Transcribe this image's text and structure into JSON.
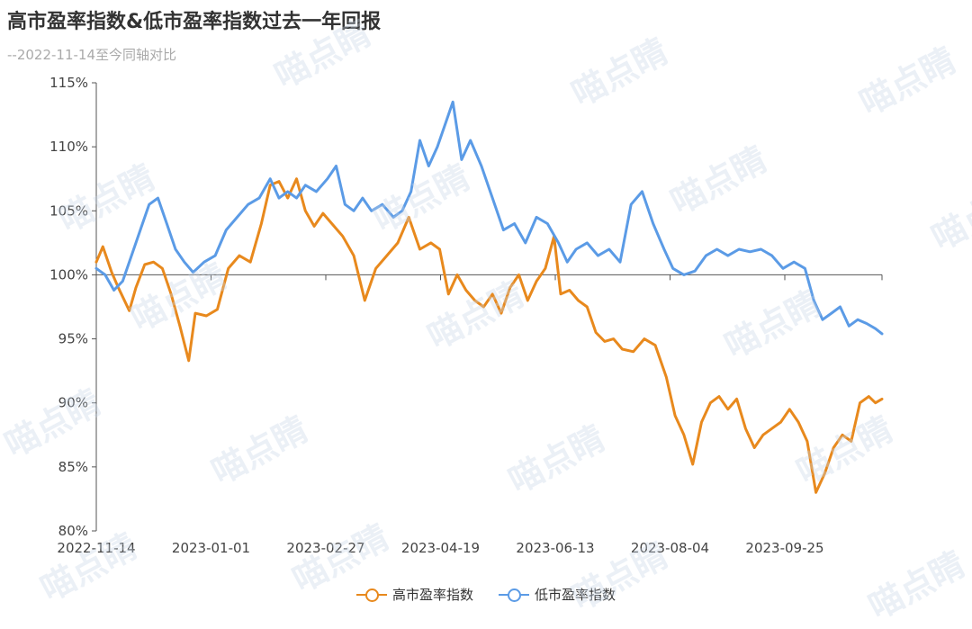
{
  "chart_data": {
    "type": "line",
    "title": "高市盈率指数&低市盈率指数过去一年回报",
    "subtitle": "--2022-11-14至今同轴对比",
    "ylim": [
      80,
      115
    ],
    "y_ticks": [
      "80%",
      "85%",
      "90%",
      "95%",
      "100%",
      "105%",
      "110%",
      "115%"
    ],
    "x_ticks": [
      "2022-11-14",
      "2023-01-01",
      "2023-02-27",
      "2023-04-19",
      "2023-06-13",
      "2023-08-04",
      "2023-09-25"
    ],
    "legend_position": "bottom",
    "grid": false,
    "series": [
      {
        "name": "高市盈率指数",
        "color": "#e8891d",
        "points": [
          [
            "2022-11-14",
            101.0
          ],
          [
            "2022-11-17",
            102.2
          ],
          [
            "2022-11-21",
            100.2
          ],
          [
            "2022-11-24",
            99.0
          ],
          [
            "2022-11-29",
            97.2
          ],
          [
            "2022-12-02",
            99.0
          ],
          [
            "2022-12-06",
            100.8
          ],
          [
            "2022-12-10",
            101.0
          ],
          [
            "2022-12-14",
            100.5
          ],
          [
            "2022-12-18",
            98.5
          ],
          [
            "2022-12-22",
            96.0
          ],
          [
            "2022-12-26",
            93.3
          ],
          [
            "2022-12-29",
            97.0
          ],
          [
            "2023-01-03",
            96.8
          ],
          [
            "2023-01-08",
            97.3
          ],
          [
            "2023-01-13",
            100.5
          ],
          [
            "2023-01-18",
            101.5
          ],
          [
            "2023-01-23",
            101.0
          ],
          [
            "2023-01-28",
            104.0
          ],
          [
            "2023-02-01",
            107.0
          ],
          [
            "2023-02-05",
            107.3
          ],
          [
            "2023-02-09",
            106.0
          ],
          [
            "2023-02-13",
            107.5
          ],
          [
            "2023-02-17",
            105.0
          ],
          [
            "2023-02-21",
            103.8
          ],
          [
            "2023-02-25",
            104.8
          ],
          [
            "2023-03-01",
            104.0
          ],
          [
            "2023-03-06",
            103.0
          ],
          [
            "2023-03-11",
            101.5
          ],
          [
            "2023-03-16",
            98.0
          ],
          [
            "2023-03-21",
            100.5
          ],
          [
            "2023-03-26",
            101.5
          ],
          [
            "2023-03-31",
            102.5
          ],
          [
            "2023-04-05",
            104.5
          ],
          [
            "2023-04-10",
            102.0
          ],
          [
            "2023-04-15",
            102.5
          ],
          [
            "2023-04-19",
            102.0
          ],
          [
            "2023-04-23",
            98.5
          ],
          [
            "2023-04-27",
            100.0
          ],
          [
            "2023-05-01",
            98.8
          ],
          [
            "2023-05-05",
            98.0
          ],
          [
            "2023-05-09",
            97.5
          ],
          [
            "2023-05-13",
            98.5
          ],
          [
            "2023-05-17",
            97.0
          ],
          [
            "2023-05-21",
            99.0
          ],
          [
            "2023-05-25",
            100.0
          ],
          [
            "2023-05-29",
            98.0
          ],
          [
            "2023-06-02",
            99.5
          ],
          [
            "2023-06-06",
            100.5
          ],
          [
            "2023-06-10",
            103.0
          ],
          [
            "2023-06-13",
            98.5
          ],
          [
            "2023-06-17",
            98.8
          ],
          [
            "2023-06-21",
            98.0
          ],
          [
            "2023-06-25",
            97.5
          ],
          [
            "2023-06-29",
            95.5
          ],
          [
            "2023-07-03",
            94.8
          ],
          [
            "2023-07-07",
            95.0
          ],
          [
            "2023-07-11",
            94.2
          ],
          [
            "2023-07-16",
            94.0
          ],
          [
            "2023-07-21",
            95.0
          ],
          [
            "2023-07-26",
            94.5
          ],
          [
            "2023-07-31",
            92.0
          ],
          [
            "2023-08-04",
            89.0
          ],
          [
            "2023-08-08",
            87.5
          ],
          [
            "2023-08-12",
            85.2
          ],
          [
            "2023-08-16",
            88.5
          ],
          [
            "2023-08-20",
            90.0
          ],
          [
            "2023-08-24",
            90.5
          ],
          [
            "2023-08-28",
            89.5
          ],
          [
            "2023-09-01",
            90.3
          ],
          [
            "2023-09-05",
            88.0
          ],
          [
            "2023-09-09",
            86.5
          ],
          [
            "2023-09-13",
            87.5
          ],
          [
            "2023-09-17",
            88.0
          ],
          [
            "2023-09-21",
            88.5
          ],
          [
            "2023-09-25",
            89.5
          ],
          [
            "2023-09-29",
            88.5
          ],
          [
            "2023-10-03",
            87.0
          ],
          [
            "2023-10-07",
            83.0
          ],
          [
            "2023-10-11",
            84.5
          ],
          [
            "2023-10-15",
            86.5
          ],
          [
            "2023-10-19",
            87.5
          ],
          [
            "2023-10-23",
            87.0
          ],
          [
            "2023-10-27",
            90.0
          ],
          [
            "2023-10-31",
            90.5
          ],
          [
            "2023-11-03",
            90.0
          ],
          [
            "2023-11-06",
            90.3
          ]
        ]
      },
      {
        "name": "低市盈率指数",
        "color": "#5b9be6",
        "points": [
          [
            "2022-11-14",
            100.5
          ],
          [
            "2022-11-18",
            100.0
          ],
          [
            "2022-11-22",
            98.8
          ],
          [
            "2022-11-26",
            99.5
          ],
          [
            "2022-11-30",
            101.5
          ],
          [
            "2022-12-04",
            103.5
          ],
          [
            "2022-12-08",
            105.5
          ],
          [
            "2022-12-12",
            106.0
          ],
          [
            "2022-12-16",
            104.0
          ],
          [
            "2022-12-20",
            102.0
          ],
          [
            "2022-12-24",
            101.0
          ],
          [
            "2022-12-28",
            100.2
          ],
          [
            "2023-01-02",
            101.0
          ],
          [
            "2023-01-07",
            101.5
          ],
          [
            "2023-01-12",
            103.5
          ],
          [
            "2023-01-17",
            104.5
          ],
          [
            "2023-01-22",
            105.5
          ],
          [
            "2023-01-27",
            106.0
          ],
          [
            "2023-02-01",
            107.5
          ],
          [
            "2023-02-05",
            106.0
          ],
          [
            "2023-02-09",
            106.5
          ],
          [
            "2023-02-13",
            106.0
          ],
          [
            "2023-02-17",
            107.0
          ],
          [
            "2023-02-22",
            106.5
          ],
          [
            "2023-02-27",
            107.5
          ],
          [
            "2023-03-03",
            108.5
          ],
          [
            "2023-03-07",
            105.5
          ],
          [
            "2023-03-11",
            105.0
          ],
          [
            "2023-03-15",
            106.0
          ],
          [
            "2023-03-19",
            105.0
          ],
          [
            "2023-03-24",
            105.5
          ],
          [
            "2023-03-29",
            104.5
          ],
          [
            "2023-04-02",
            105.0
          ],
          [
            "2023-04-06",
            106.5
          ],
          [
            "2023-04-10",
            110.5
          ],
          [
            "2023-04-14",
            108.5
          ],
          [
            "2023-04-18",
            110.0
          ],
          [
            "2023-04-22",
            112.0
          ],
          [
            "2023-04-25",
            113.5
          ],
          [
            "2023-04-29",
            109.0
          ],
          [
            "2023-05-03",
            110.5
          ],
          [
            "2023-05-08",
            108.5
          ],
          [
            "2023-05-13",
            106.0
          ],
          [
            "2023-05-18",
            103.5
          ],
          [
            "2023-05-23",
            104.0
          ],
          [
            "2023-05-28",
            102.5
          ],
          [
            "2023-06-02",
            104.5
          ],
          [
            "2023-06-07",
            104.0
          ],
          [
            "2023-06-12",
            102.5
          ],
          [
            "2023-06-16",
            101.0
          ],
          [
            "2023-06-20",
            102.0
          ],
          [
            "2023-06-25",
            102.5
          ],
          [
            "2023-06-30",
            101.5
          ],
          [
            "2023-07-05",
            102.0
          ],
          [
            "2023-07-10",
            101.0
          ],
          [
            "2023-07-15",
            105.5
          ],
          [
            "2023-07-20",
            106.5
          ],
          [
            "2023-07-25",
            104.0
          ],
          [
            "2023-07-30",
            102.0
          ],
          [
            "2023-08-03",
            100.5
          ],
          [
            "2023-08-08",
            100.0
          ],
          [
            "2023-08-13",
            100.3
          ],
          [
            "2023-08-18",
            101.5
          ],
          [
            "2023-08-23",
            102.0
          ],
          [
            "2023-08-28",
            101.5
          ],
          [
            "2023-09-02",
            102.0
          ],
          [
            "2023-09-07",
            101.8
          ],
          [
            "2023-09-12",
            102.0
          ],
          [
            "2023-09-17",
            101.5
          ],
          [
            "2023-09-22",
            100.5
          ],
          [
            "2023-09-27",
            101.0
          ],
          [
            "2023-10-02",
            100.5
          ],
          [
            "2023-10-06",
            98.0
          ],
          [
            "2023-10-10",
            96.5
          ],
          [
            "2023-10-14",
            97.0
          ],
          [
            "2023-10-18",
            97.5
          ],
          [
            "2023-10-22",
            96.0
          ],
          [
            "2023-10-26",
            96.5
          ],
          [
            "2023-10-30",
            96.2
          ],
          [
            "2023-11-03",
            95.8
          ],
          [
            "2023-11-06",
            95.4
          ]
        ]
      }
    ],
    "watermark": "喵点睛"
  }
}
